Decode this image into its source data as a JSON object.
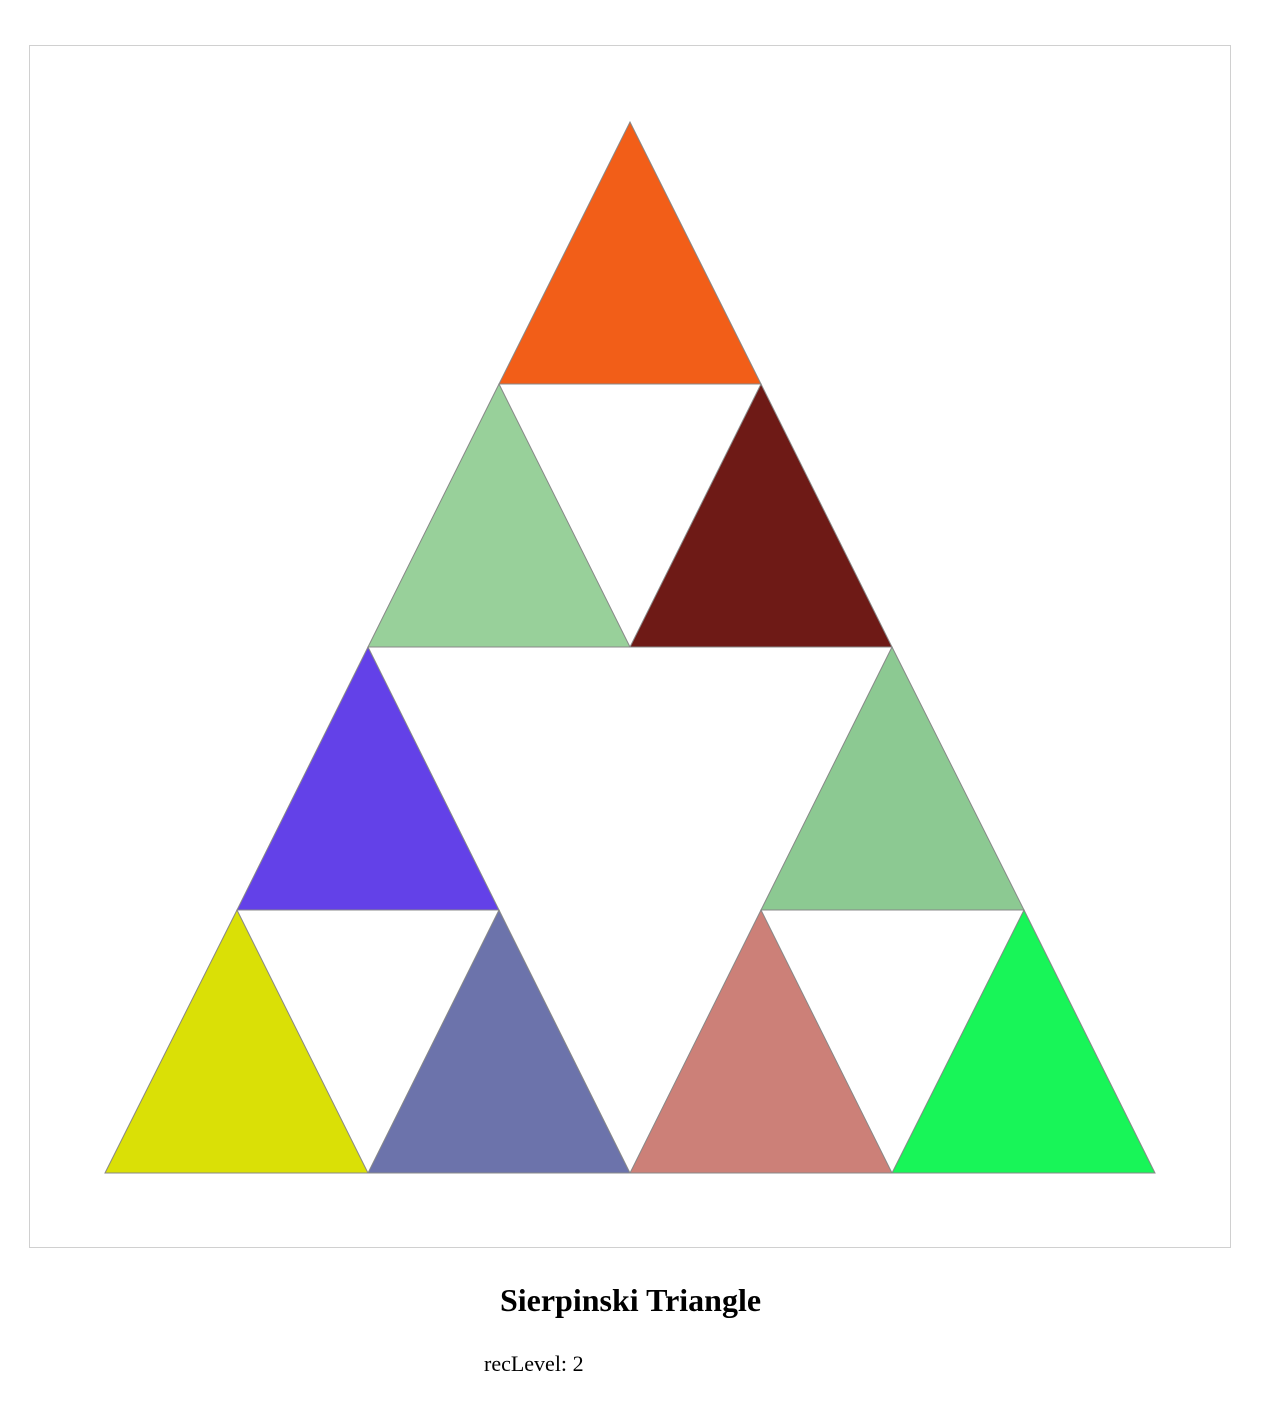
{
  "title": "Sierpinski Triangle",
  "rec_level": {
    "label": "recLevel:",
    "value": 2
  },
  "triangles": [
    {
      "id": "top-top",
      "color": "#f25e18"
    },
    {
      "id": "top-left",
      "color": "#98d09a"
    },
    {
      "id": "top-right",
      "color": "#6e1a16"
    },
    {
      "id": "left-top",
      "color": "#6341e8"
    },
    {
      "id": "left-left",
      "color": "#dae006"
    },
    {
      "id": "left-right",
      "color": "#6c73ab"
    },
    {
      "id": "right-top",
      "color": "#8cc992"
    },
    {
      "id": "right-left",
      "color": "#cc8078"
    },
    {
      "id": "right-right",
      "color": "#18f558"
    }
  ]
}
